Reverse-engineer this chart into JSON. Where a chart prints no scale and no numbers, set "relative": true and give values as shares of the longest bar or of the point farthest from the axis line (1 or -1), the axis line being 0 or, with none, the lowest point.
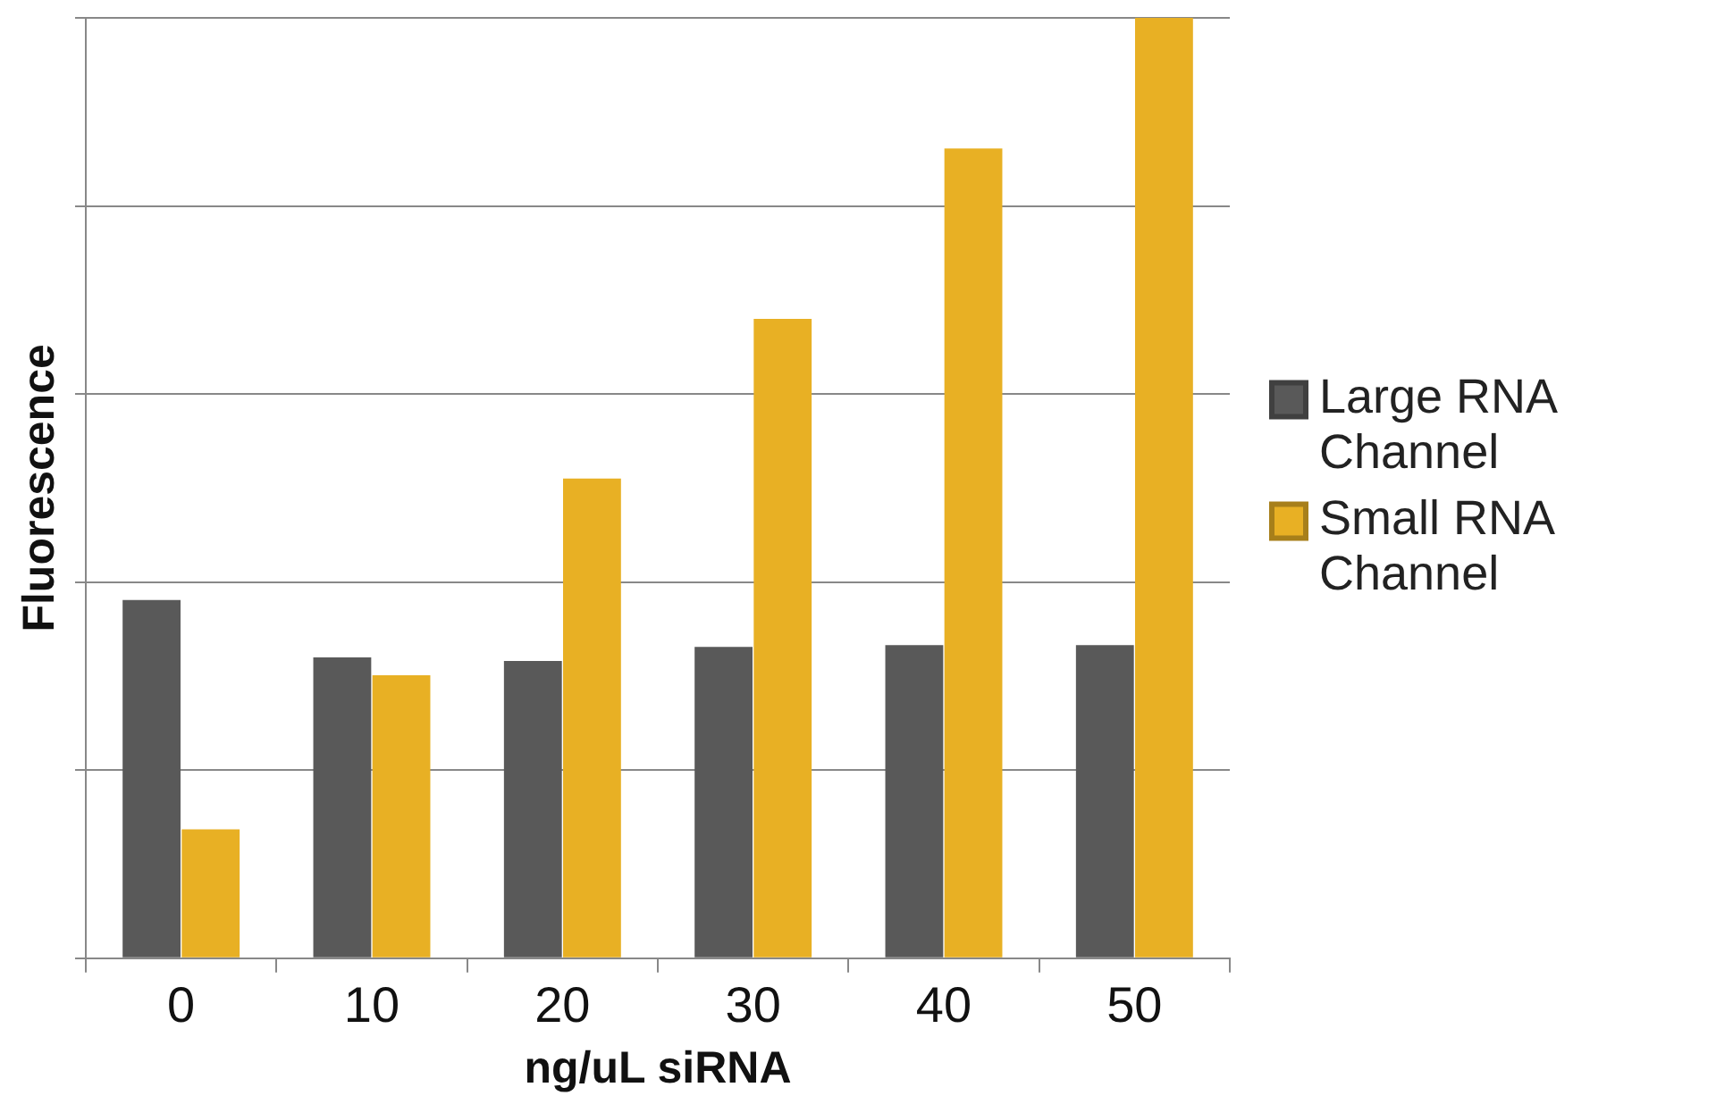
{
  "chart_data": {
    "type": "bar",
    "xlabel": "ng/uL siRNA",
    "ylabel": "Fluorescence",
    "categories": [
      "0",
      "10",
      "20",
      "30",
      "40",
      "50"
    ],
    "relative": true,
    "grid": "y",
    "legend": "right",
    "series": [
      {
        "name": "Large RNA Channel",
        "color": "#595959",
        "values": [
          0.381,
          0.32,
          0.316,
          0.331,
          0.333,
          0.333
        ]
      },
      {
        "name": "Small RNA Channel",
        "color": "#e8b024",
        "values": [
          0.137,
          0.301,
          0.51,
          0.68,
          0.861,
          1
        ]
      }
    ]
  }
}
